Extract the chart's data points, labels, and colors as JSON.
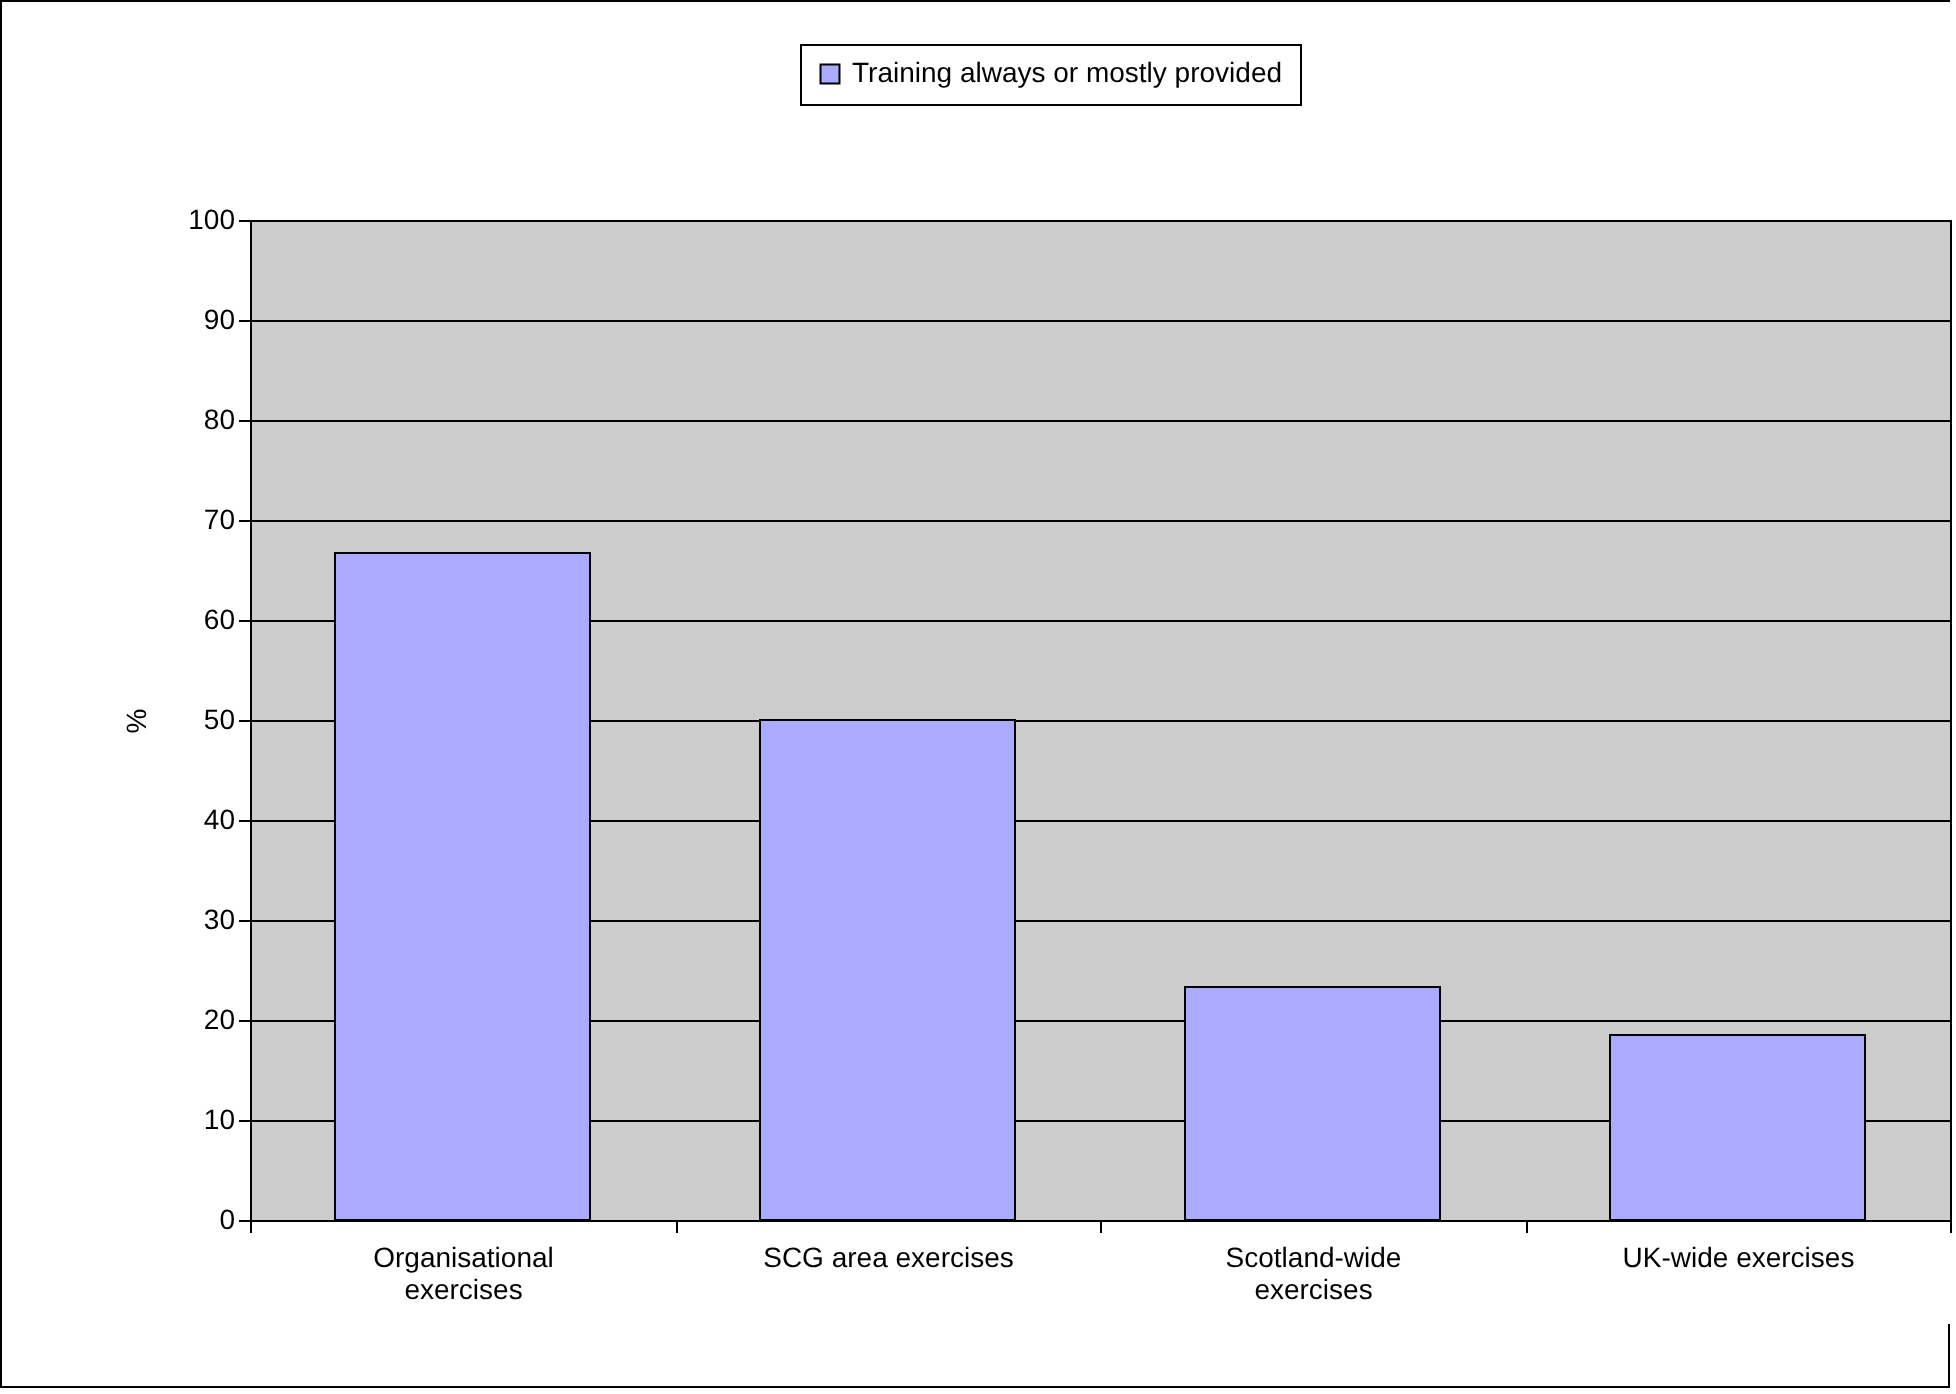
{
  "chart_data": {
    "type": "bar",
    "ylabel": "%",
    "categories": [
      "Organisational exercises",
      "SCG area exercises",
      "Scotland-wide exercises",
      "UK-wide exercises"
    ],
    "series": [
      {
        "name": "Training always or mostly provided",
        "color": "#aaaaff",
        "values": [
          66.7,
          50,
          23.3,
          18.5
        ]
      }
    ],
    "ylim": [
      0,
      100
    ],
    "yticks": [
      0,
      10,
      20,
      30,
      40,
      50,
      60,
      70,
      80,
      90,
      100
    ],
    "grid": "y",
    "legend": "top"
  }
}
